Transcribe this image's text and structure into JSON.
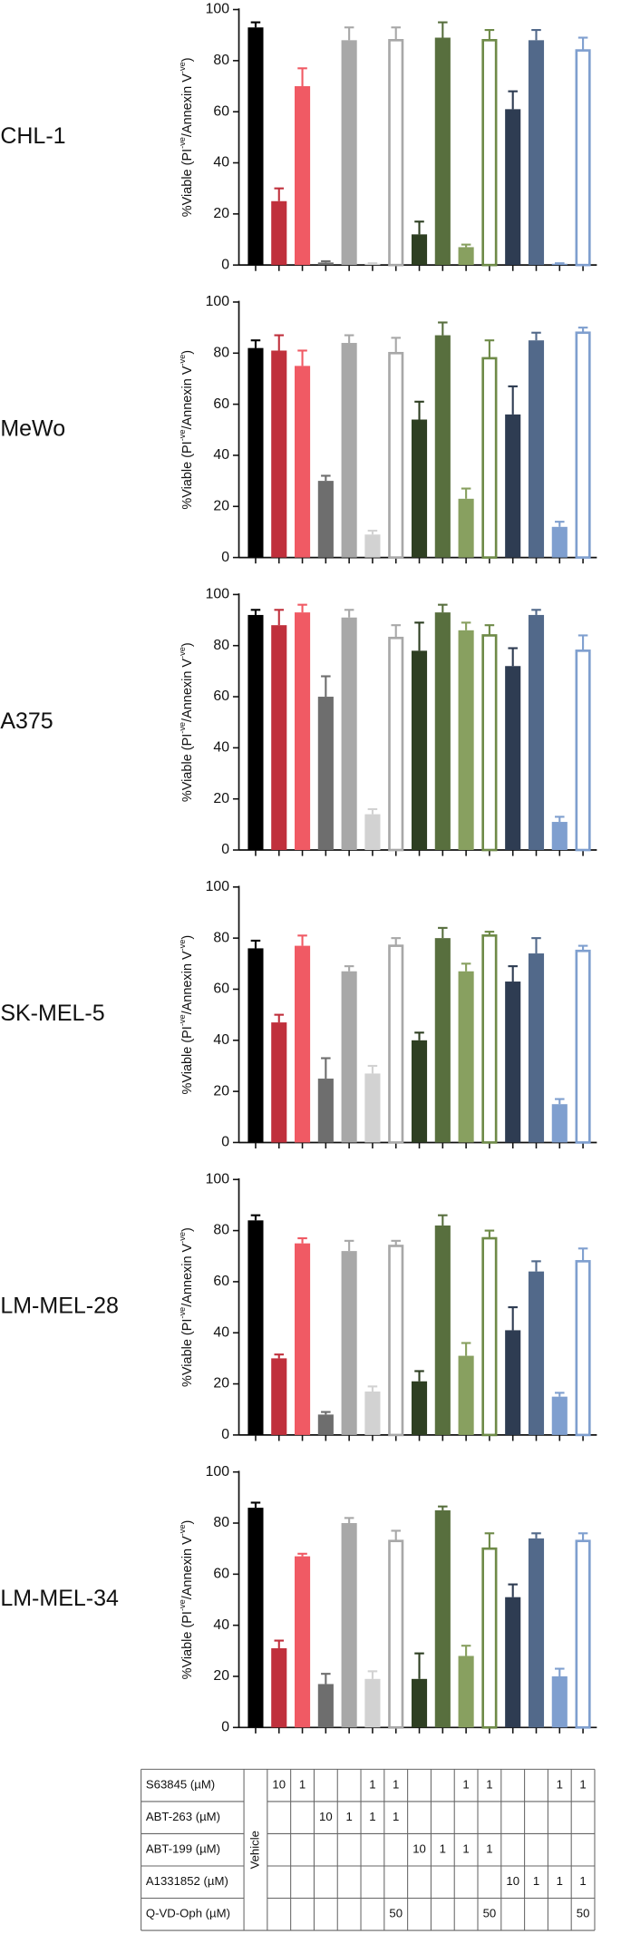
{
  "chart_data": [
    {
      "type": "bar",
      "title": "CHL-1",
      "ylabel": [
        "%Viable (PI",
        "-ve",
        "/Annexin V",
        "-ve",
        ")"
      ],
      "ylim": [
        0,
        100
      ],
      "yticks": [
        0,
        20,
        40,
        60,
        80,
        100
      ],
      "values": [
        93,
        25,
        70,
        1,
        88,
        0.5,
        88,
        12,
        89,
        7,
        88,
        61,
        88,
        0.5,
        84
      ],
      "errors": [
        2,
        5,
        7,
        0.5,
        5,
        0.2,
        5,
        5,
        6,
        1,
        4,
        7,
        4,
        0.2,
        5
      ],
      "colors": [
        "#000000",
        "#c0303c",
        "#f05a64",
        "#6e6e6e",
        "#a8a8a8",
        "#d2d2d2",
        "#a8a8a8",
        "#2e3f22",
        "#586f3e",
        "#88a060",
        "#6e8a48",
        "#2e3c52",
        "#52698a",
        "#7f9fcf",
        "#7f9fcf"
      ],
      "hollow": [
        false,
        false,
        false,
        false,
        false,
        false,
        true,
        false,
        false,
        false,
        true,
        false,
        false,
        false,
        true
      ]
    },
    {
      "type": "bar",
      "title": "MeWo",
      "ylabel": [
        "%Viable (PI",
        "-ve",
        "/Annexin V",
        "-ve",
        ")"
      ],
      "ylim": [
        0,
        100
      ],
      "yticks": [
        0,
        20,
        40,
        60,
        80,
        100
      ],
      "values": [
        82,
        81,
        75,
        30,
        84,
        9,
        80,
        54,
        87,
        23,
        78,
        56,
        85,
        12,
        88
      ],
      "errors": [
        3,
        6,
        6,
        2,
        3,
        1.5,
        6,
        7,
        5,
        4,
        7,
        11,
        3,
        2,
        2
      ],
      "colors": [
        "#000000",
        "#c0303c",
        "#f05a64",
        "#6e6e6e",
        "#a8a8a8",
        "#d2d2d2",
        "#a8a8a8",
        "#2e3f22",
        "#586f3e",
        "#88a060",
        "#6e8a48",
        "#2e3c52",
        "#52698a",
        "#7f9fcf",
        "#7f9fcf"
      ],
      "hollow": [
        false,
        false,
        false,
        false,
        false,
        false,
        true,
        false,
        false,
        false,
        true,
        false,
        false,
        false,
        true
      ]
    },
    {
      "type": "bar",
      "title": "A375",
      "ylabel": [
        "%Viable (PI",
        "-ve",
        "/Annexin V",
        "-ve",
        ")"
      ],
      "ylim": [
        0,
        100
      ],
      "yticks": [
        0,
        20,
        40,
        60,
        80,
        100
      ],
      "values": [
        92,
        88,
        93,
        60,
        91,
        14,
        83,
        78,
        93,
        86,
        84,
        72,
        92,
        11,
        78
      ],
      "errors": [
        2,
        6,
        3,
        8,
        3,
        2,
        5,
        11,
        3,
        3,
        4,
        7,
        2,
        2,
        6
      ],
      "colors": [
        "#000000",
        "#c0303c",
        "#f05a64",
        "#6e6e6e",
        "#a8a8a8",
        "#d2d2d2",
        "#a8a8a8",
        "#2e3f22",
        "#586f3e",
        "#88a060",
        "#6e8a48",
        "#2e3c52",
        "#52698a",
        "#7f9fcf",
        "#7f9fcf"
      ],
      "hollow": [
        false,
        false,
        false,
        false,
        false,
        false,
        true,
        false,
        false,
        false,
        true,
        false,
        false,
        false,
        true
      ]
    },
    {
      "type": "bar",
      "title": "SK-MEL-5",
      "ylabel": [
        "%Viable (PI",
        "-ve",
        "/Annexin V",
        "-ve",
        ")"
      ],
      "ylim": [
        0,
        100
      ],
      "yticks": [
        0,
        20,
        40,
        60,
        80,
        100
      ],
      "values": [
        76,
        47,
        77,
        25,
        67,
        27,
        77,
        40,
        80,
        67,
        81,
        63,
        74,
        15,
        75
      ],
      "errors": [
        3,
        3,
        4,
        8,
        2,
        3,
        3,
        3,
        4,
        3,
        1.5,
        6,
        6,
        2,
        2
      ],
      "colors": [
        "#000000",
        "#c0303c",
        "#f05a64",
        "#6e6e6e",
        "#a8a8a8",
        "#d2d2d2",
        "#a8a8a8",
        "#2e3f22",
        "#586f3e",
        "#88a060",
        "#6e8a48",
        "#2e3c52",
        "#52698a",
        "#7f9fcf",
        "#7f9fcf"
      ],
      "hollow": [
        false,
        false,
        false,
        false,
        false,
        false,
        true,
        false,
        false,
        false,
        true,
        false,
        false,
        false,
        true
      ]
    },
    {
      "type": "bar",
      "title": "LM-MEL-28",
      "ylabel": [
        "%Viable (PI",
        "-ve",
        "/Annexin V",
        "-ve",
        ")"
      ],
      "ylim": [
        0,
        100
      ],
      "yticks": [
        0,
        20,
        40,
        60,
        80,
        100
      ],
      "values": [
        84,
        30,
        75,
        8,
        72,
        17,
        74,
        21,
        82,
        31,
        77,
        41,
        64,
        15,
        68
      ],
      "errors": [
        2,
        1.5,
        2,
        1,
        4,
        2,
        2,
        4,
        4,
        5,
        3,
        9,
        4,
        1.5,
        5
      ],
      "colors": [
        "#000000",
        "#c0303c",
        "#f05a64",
        "#6e6e6e",
        "#a8a8a8",
        "#d2d2d2",
        "#a8a8a8",
        "#2e3f22",
        "#586f3e",
        "#88a060",
        "#6e8a48",
        "#2e3c52",
        "#52698a",
        "#7f9fcf",
        "#7f9fcf"
      ],
      "hollow": [
        false,
        false,
        false,
        false,
        false,
        false,
        true,
        false,
        false,
        false,
        true,
        false,
        false,
        false,
        true
      ]
    },
    {
      "type": "bar",
      "title": "LM-MEL-34",
      "ylabel": [
        "%Viable (PI",
        "-ve",
        "/Annexin V",
        "-ve",
        ")"
      ],
      "ylim": [
        0,
        100
      ],
      "yticks": [
        0,
        20,
        40,
        60,
        80,
        100
      ],
      "values": [
        86,
        31,
        67,
        17,
        80,
        19,
        73,
        19,
        85,
        28,
        70,
        51,
        74,
        20,
        73
      ],
      "errors": [
        2,
        3,
        1,
        4,
        2,
        3,
        4,
        10,
        1.5,
        4,
        6,
        5,
        2,
        3,
        3
      ],
      "colors": [
        "#000000",
        "#c0303c",
        "#f05a64",
        "#6e6e6e",
        "#a8a8a8",
        "#d2d2d2",
        "#a8a8a8",
        "#2e3f22",
        "#586f3e",
        "#88a060",
        "#6e8a48",
        "#2e3c52",
        "#52698a",
        "#7f9fcf",
        "#7f9fcf"
      ],
      "hollow": [
        false,
        false,
        false,
        false,
        false,
        false,
        true,
        false,
        false,
        false,
        true,
        false,
        false,
        false,
        true
      ]
    }
  ],
  "table": {
    "vehicle": "Vehicle",
    "rows": [
      {
        "label": "S63845 (µM)",
        "cells": [
          10,
          1,
          null,
          null,
          1,
          1,
          null,
          null,
          1,
          1,
          null,
          null,
          1,
          1
        ]
      },
      {
        "label": "ABT-263 (µM)",
        "cells": [
          null,
          null,
          10,
          1,
          1,
          1,
          null,
          null,
          null,
          null,
          null,
          null,
          null,
          null
        ]
      },
      {
        "label": "ABT-199 (µM)",
        "cells": [
          null,
          null,
          null,
          null,
          null,
          null,
          10,
          1,
          1,
          1,
          null,
          null,
          null,
          null
        ]
      },
      {
        "label": "A1331852 (µM)",
        "cells": [
          null,
          null,
          null,
          null,
          null,
          null,
          null,
          null,
          null,
          null,
          10,
          1,
          1,
          1
        ]
      },
      {
        "label": "Q-VD-Oph (µM)",
        "cells": [
          null,
          null,
          null,
          null,
          null,
          50,
          null,
          null,
          null,
          50,
          null,
          null,
          null,
          50
        ]
      }
    ]
  }
}
